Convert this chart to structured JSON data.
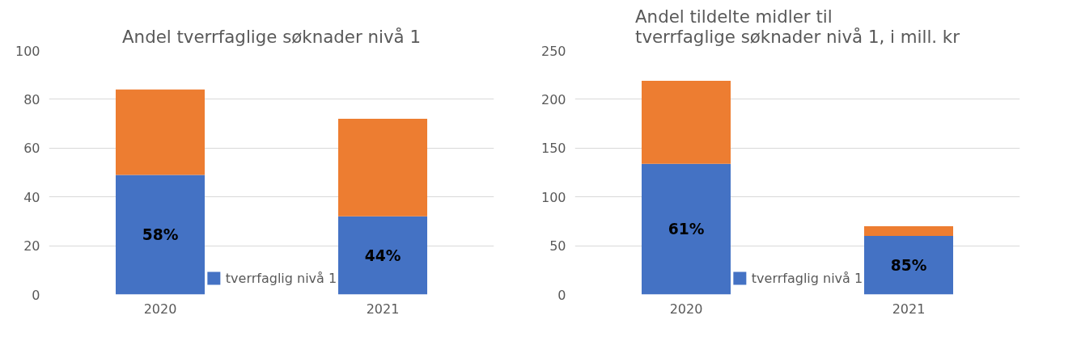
{
  "chart_data": [
    {
      "type": "bar",
      "title": "Andel tverrfaglige søknader nivå 1",
      "categories": [
        "2020",
        "2021"
      ],
      "stacked": true,
      "ylim": [
        0,
        100
      ],
      "yticks": [
        0,
        20,
        40,
        60,
        80,
        100
      ],
      "grid": "y",
      "legend": "bottom",
      "series": [
        {
          "name": "tverrfaglig nivå 1",
          "color": "#4472c4",
          "values": [
            49,
            32
          ]
        },
        {
          "color": "#ed7d31",
          "values": [
            35,
            40
          ]
        }
      ],
      "annotations": [
        "58%",
        "44%"
      ]
    },
    {
      "type": "bar",
      "title": "Andel tildelte midler til\ntverrfaglige søknader nivå 1, i mill. kr",
      "categories": [
        "2020",
        "2021"
      ],
      "stacked": true,
      "ylim": [
        0,
        250
      ],
      "yticks": [
        0,
        50,
        100,
        150,
        200,
        250
      ],
      "grid": "y",
      "legend": "bottom",
      "series": [
        {
          "name": "tverrfaglig nivå 1",
          "color": "#4472c4",
          "values": [
            134,
            60
          ]
        },
        {
          "color": "#ed7d31",
          "values": [
            85,
            10
          ]
        }
      ],
      "annotations": [
        "61%",
        "85%"
      ]
    }
  ]
}
